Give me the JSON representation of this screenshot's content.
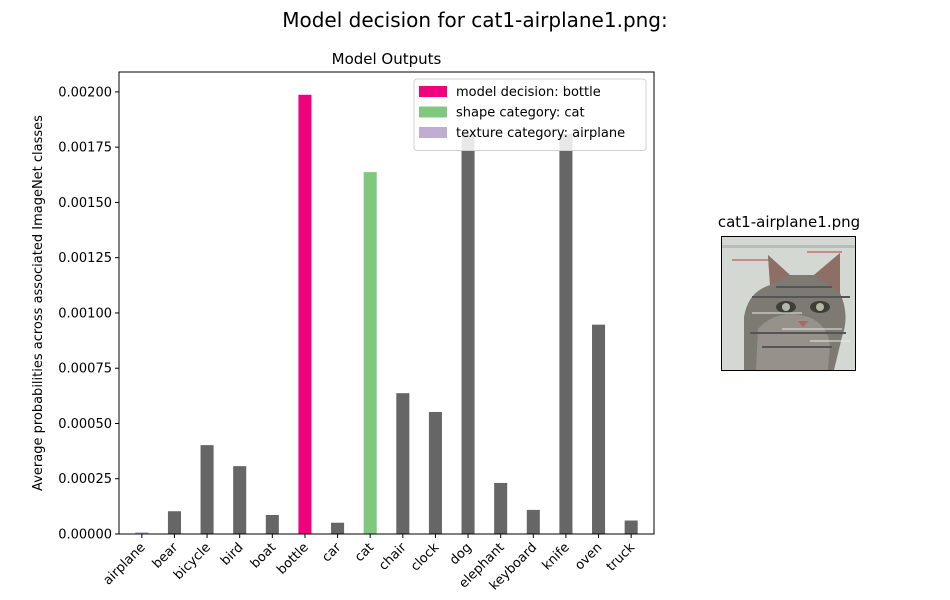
{
  "figure": {
    "title": "Model decision for cat1-airplane1.png:"
  },
  "thumbnail": {
    "title": "cat1-airplane1.png",
    "subject": "cat-icon"
  },
  "chart_data": {
    "type": "bar",
    "title": "Model Outputs",
    "xlabel": "",
    "ylabel": "Average probabilities across associated ImageNet classes",
    "ylim": [
      0,
      0.00209
    ],
    "yticks": [
      "0.00000",
      "0.00025",
      "0.00050",
      "0.00075",
      "0.00100",
      "0.00125",
      "0.00150",
      "0.00175",
      "0.00200"
    ],
    "categories": [
      "airplane",
      "bear",
      "bicycle",
      "bird",
      "boat",
      "bottle",
      "car",
      "cat",
      "chair",
      "clock",
      "dog",
      "elephant",
      "keyboard",
      "knife",
      "oven",
      "truck"
    ],
    "values": [
      8e-06,
      0.000103,
      0.000402,
      0.000307,
      8.6e-05,
      0.001987,
      5.1e-05,
      0.001637,
      0.000637,
      0.000552,
      0.00181,
      0.000231,
      0.000109,
      0.00181,
      0.000947,
      6.1e-05
    ],
    "colors": [
      "#bfadd4",
      "#666666",
      "#666666",
      "#666666",
      "#666666",
      "#f0027f",
      "#666666",
      "#7fc97f",
      "#666666",
      "#666666",
      "#666666",
      "#666666",
      "#666666",
      "#666666",
      "#666666",
      "#666666"
    ],
    "legend": {
      "placement": "top-right",
      "entries": [
        {
          "label": "model decision: bottle",
          "color": "#f0027f"
        },
        {
          "label": "shape category: cat",
          "color": "#7fc97f"
        },
        {
          "label": "texture category: airplane",
          "color": "#bfadd4"
        }
      ]
    },
    "grid": false
  }
}
